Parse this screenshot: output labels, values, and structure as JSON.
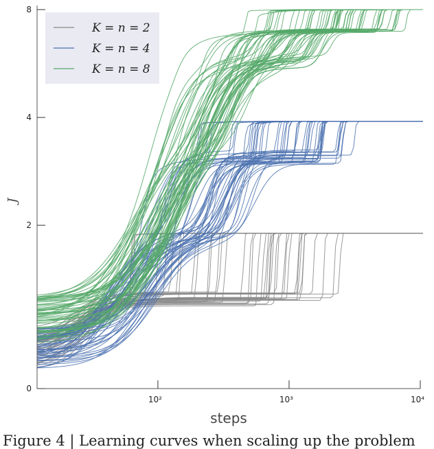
{
  "caption": "Figure 4 | Learning curves when scaling up the problem",
  "chart_data": {
    "type": "line",
    "xlabel": "steps",
    "ylabel": "J",
    "x_scale": "log",
    "y_scale": "log2",
    "xlim": [
      12,
      10000
    ],
    "ylim": [
      0.7,
      8
    ],
    "x_ticks": [
      {
        "value": 100,
        "label": "10²"
      },
      {
        "value": 1000,
        "label": "10³"
      },
      {
        "value": 10000,
        "label": "10⁴"
      }
    ],
    "y_ticks": [
      {
        "value": 0.7,
        "label": "0"
      },
      {
        "value": 2,
        "label": "2"
      },
      {
        "value": 4,
        "label": "4"
      },
      {
        "value": 8,
        "label": "8"
      }
    ],
    "legend": {
      "position": "top-left",
      "entries": [
        {
          "label": "K = n = 2",
          "color": "#888888"
        },
        {
          "label": "K = n = 4",
          "color": "#4c72b0"
        },
        {
          "label": "K = n = 8",
          "color": "#55a868"
        }
      ]
    },
    "series": [
      {
        "name": "K = n = 2",
        "color": "#888888",
        "runs": 40,
        "start": 0.9,
        "plateau": 1.25,
        "final": 1.9,
        "jump_range": [
          60,
          2500
        ]
      },
      {
        "name": "K = n = 4",
        "color": "#4c72b0",
        "runs": 50,
        "start": 0.9,
        "plateaus": [
          1.9,
          3.1
        ],
        "final": 3.9,
        "jump_range": [
          80,
          10000
        ]
      },
      {
        "name": "K = n = 8",
        "color": "#55a868",
        "runs": 60,
        "start": 1.1,
        "plateaus": [
          3.5,
          5.8,
          7.0
        ],
        "final": 8.0,
        "jump_range": [
          100,
          8000
        ]
      }
    ]
  }
}
